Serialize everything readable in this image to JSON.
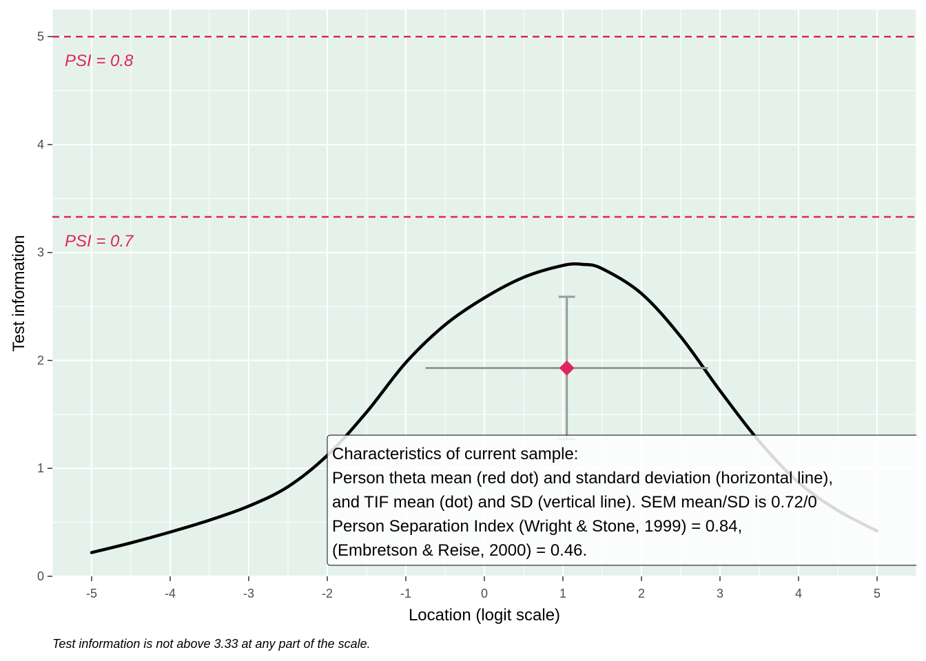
{
  "chart_data": {
    "type": "line",
    "xlabel": "Location (logit scale)",
    "ylabel": "Test information",
    "xlim": [
      -5.5,
      5.5
    ],
    "ylim": [
      0,
      5.25
    ],
    "x_ticks": [
      -5,
      -4,
      -3,
      -2,
      -1,
      0,
      1,
      2,
      3,
      4,
      5
    ],
    "y_ticks": [
      0,
      1,
      2,
      3,
      4,
      5
    ],
    "x_tick_labels": [
      "-5",
      "-4",
      "-3",
      "-2",
      "-1",
      "0",
      "1",
      "2",
      "3",
      "4",
      "5"
    ],
    "y_tick_labels": [
      "0",
      "1",
      "2",
      "3",
      "4",
      "5"
    ],
    "grid": true,
    "colors": {
      "panel_bg": "#e5f2eb",
      "grid": "#ffffff",
      "curve": "#000000",
      "curve_faded": "#b3b3b3",
      "psi": "#e0245e",
      "errorbar": "#999999",
      "point": "#e0245e"
    },
    "tif_curve": {
      "x": [
        -5,
        -4.5,
        -4,
        -3.5,
        -3,
        -2.5,
        -2,
        -1.5,
        -1,
        -0.5,
        0,
        0.5,
        1,
        1.25,
        1.5,
        2,
        2.5,
        3,
        3.5,
        4,
        4.5,
        5
      ],
      "y": [
        0.22,
        0.31,
        0.41,
        0.52,
        0.65,
        0.83,
        1.12,
        1.52,
        1.98,
        2.33,
        2.58,
        2.77,
        2.88,
        2.89,
        2.85,
        2.62,
        2.22,
        1.72,
        1.25,
        0.87,
        0.61,
        0.42
      ]
    },
    "reference_lines": [
      {
        "y": 5.0,
        "label": "PSI = 0.8"
      },
      {
        "y": 3.33,
        "label": "PSI = 0.7"
      }
    ],
    "sample_point": {
      "x": 1.05,
      "y": 1.93,
      "x_min": -0.75,
      "x_max": 2.85,
      "y_min": 1.27,
      "y_max": 2.59
    },
    "annotation_lines": [
      "Characteristics of current sample:",
      "Person theta mean (red dot) and standard deviation (horizontal line),",
      "and TIF mean (dot) and SD (vertical line). SEM mean/SD is 0.72/0",
      "Person Separation Index (Wright & Stone, 1999) = 0.84,",
      "(Embretson & Reise, 2000) = 0.46."
    ],
    "caption": "Test information is not above 3.33 at any part of the scale."
  }
}
